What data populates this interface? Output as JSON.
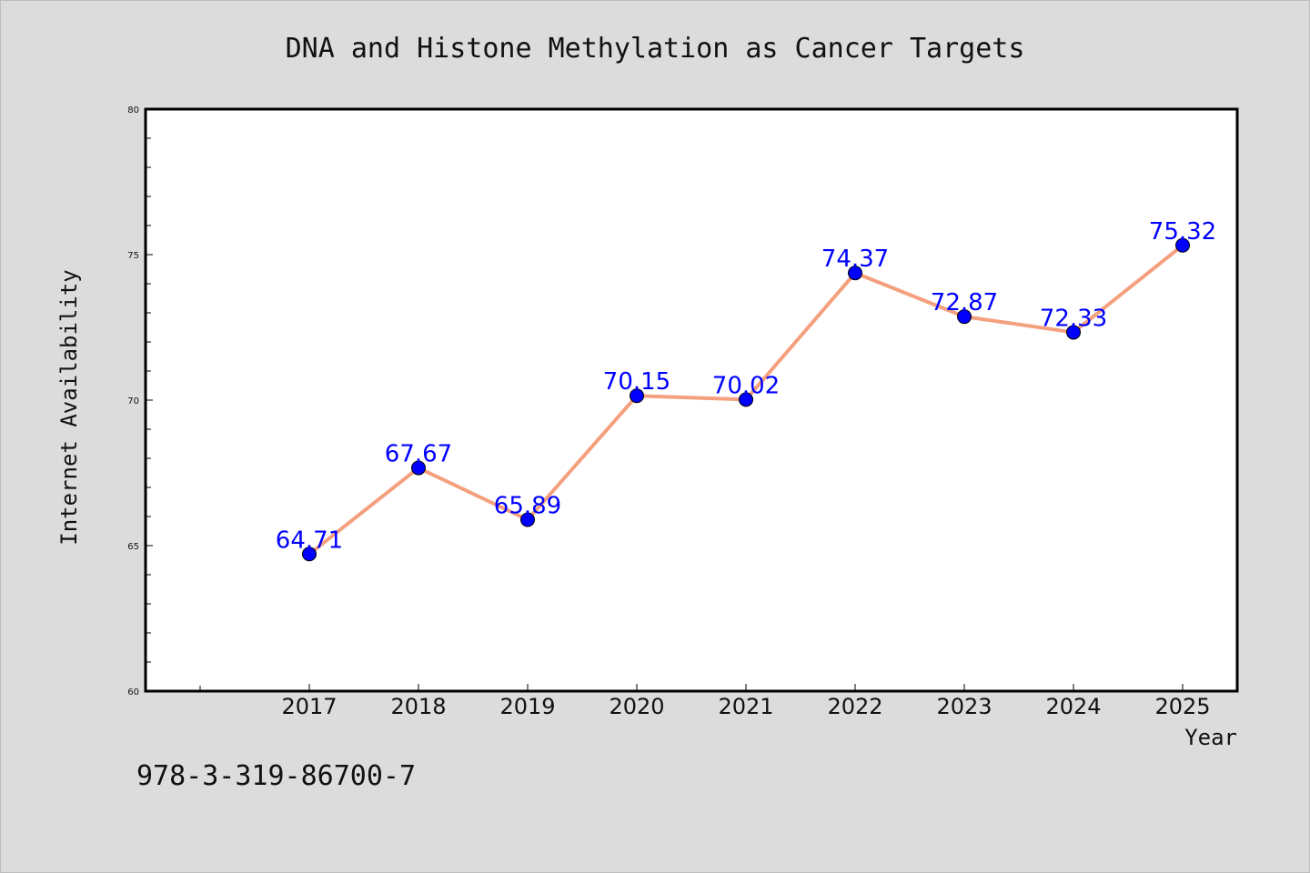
{
  "chart_data": {
    "type": "line",
    "title": "DNA and Histone Methylation as Cancer Targets",
    "xlabel": "Year",
    "ylabel": "Internet Availability",
    "categories": [
      "2017",
      "2018",
      "2019",
      "2020",
      "2021",
      "2022",
      "2023",
      "2024",
      "2025"
    ],
    "series": [
      {
        "values": [
          64.71,
          67.67,
          65.89,
          70.15,
          70.02,
          74.37,
          72.87,
          72.33,
          75.32
        ]
      }
    ],
    "data_labels": [
      "64.71",
      "67.67",
      "65.89",
      "70.15",
      "70.02",
      "74.37",
      "72.87",
      "72.33",
      "75.32"
    ],
    "ylim": [
      60,
      80
    ],
    "yticks": [
      "60",
      "65",
      "70",
      "75",
      "80"
    ],
    "grid": false,
    "legend": "none",
    "colors": {
      "line": "#f4a07e",
      "marker": "#0000ff",
      "data_label": "#0000ff",
      "background": "#dcdcdc",
      "plot_background": "#ffffff"
    }
  },
  "footnote": "978-3-319-86700-7"
}
